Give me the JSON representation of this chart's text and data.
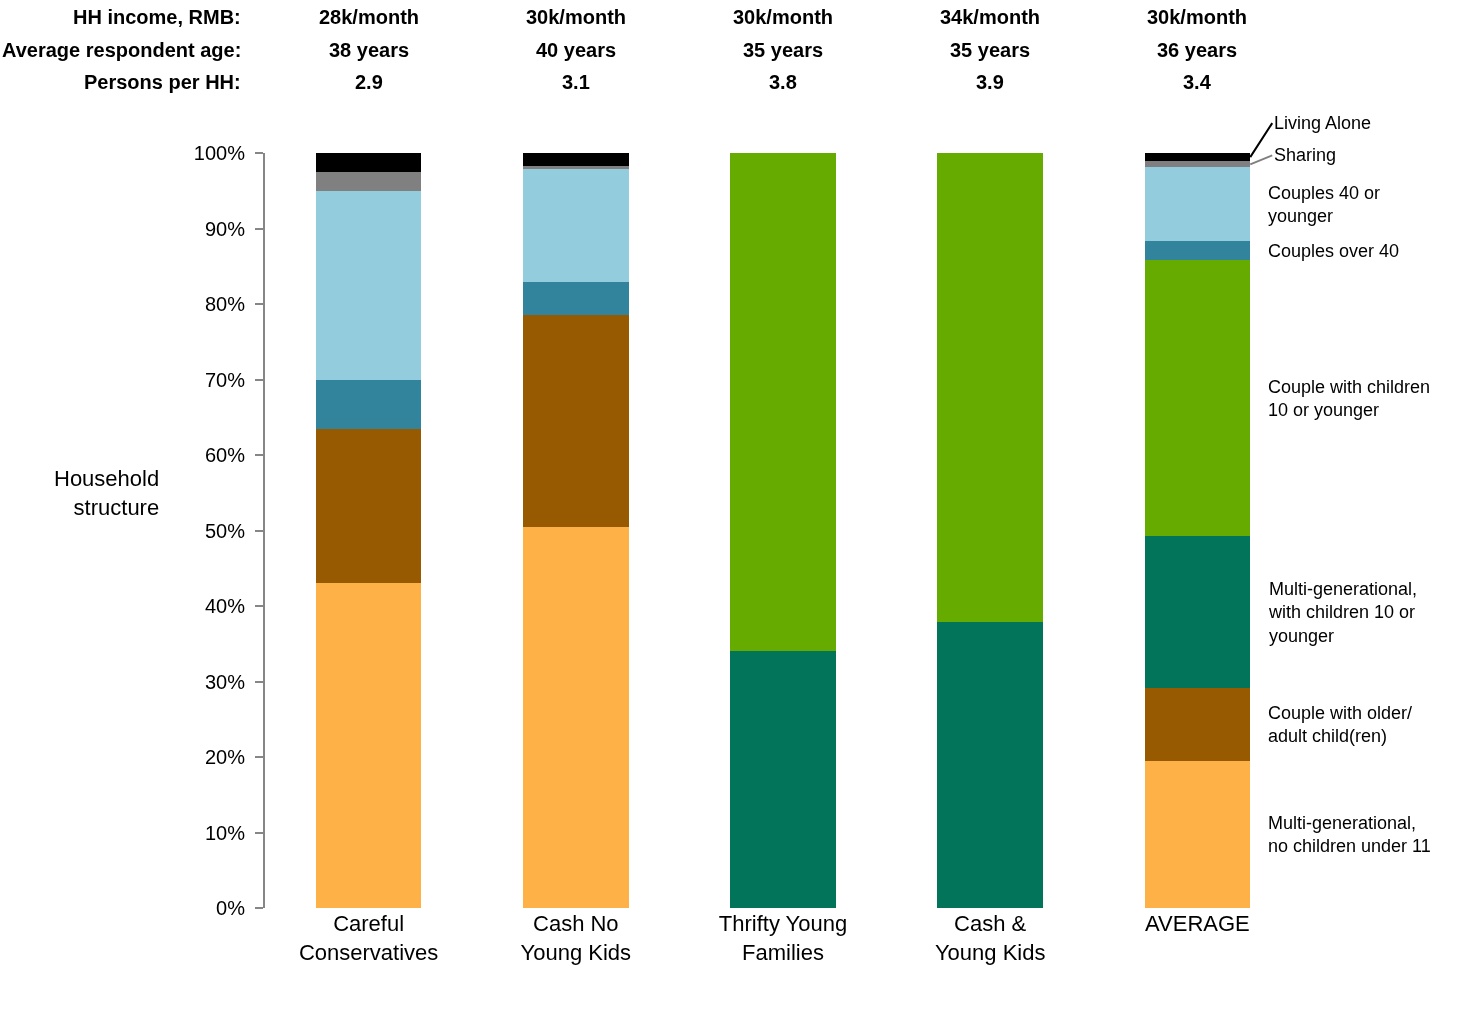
{
  "chart_data": {
    "type": "bar",
    "stacked": true,
    "ylabel": "Household\nstructure",
    "categories": [
      "Careful\nConservatives",
      "Cash No\nYoung Kids",
      "Thrifty Young\nFamilies",
      "Cash &\nYoung Kids",
      "AVERAGE"
    ],
    "series": [
      {
        "name": "Multi-generational,\nno children under 11",
        "color": "#fdb147",
        "values": [
          43.0,
          50.5,
          0,
          0,
          19.5
        ]
      },
      {
        "name": "Couple with older/\nadult child(ren)",
        "color": "#975a00",
        "values": [
          20.4,
          28.0,
          0,
          0,
          9.6
        ]
      },
      {
        "name": "Multi-generational,\nwith children 10 or\nyounger",
        "color": "#02745a",
        "values": [
          0,
          0,
          34.0,
          37.9,
          20.2
        ]
      },
      {
        "name": "Couple with children\n10 or younger",
        "color": "#66ac00",
        "values": [
          0,
          0,
          66.0,
          62.1,
          36.5
        ]
      },
      {
        "name": "Couples over 40",
        "color": "#31849b",
        "values": [
          6.5,
          4.4,
          0,
          0,
          2.5
        ]
      },
      {
        "name": "Couples 40 or\nyounger",
        "color": "#93cddd",
        "values": [
          25.1,
          15.0,
          0,
          0,
          9.8
        ]
      },
      {
        "name": "Sharing",
        "color": "#808080",
        "values": [
          2.5,
          0.4,
          0,
          0,
          0.8
        ]
      },
      {
        "name": "Living Alone",
        "color": "#000000",
        "values": [
          2.5,
          1.7,
          0,
          0,
          1.1
        ]
      }
    ],
    "ylim": [
      0,
      100
    ],
    "yticks": [
      {
        "value": 0,
        "label": "0%"
      },
      {
        "value": 10,
        "label": "10%"
      },
      {
        "value": 20,
        "label": "20%"
      },
      {
        "value": 30,
        "label": "30%"
      },
      {
        "value": 40,
        "label": "40%"
      },
      {
        "value": 50,
        "label": "50%"
      },
      {
        "value": 60,
        "label": "60%"
      },
      {
        "value": 70,
        "label": "70%"
      },
      {
        "value": 80,
        "label": "80%"
      },
      {
        "value": 90,
        "label": "90%"
      },
      {
        "value": 100,
        "label": "100%"
      }
    ],
    "legend": "right",
    "annotations": [
      "HH income, RMB:",
      "28k/month",
      "30k/month",
      "30k/month",
      "34k/month",
      "30k/month",
      "Average respondent age:",
      "38 years",
      "40 years",
      "35 years",
      "35 years",
      "36 years",
      "Persons per HH:",
      "2.9",
      "3.1",
      "3.8",
      "3.9",
      "3.4"
    ]
  }
}
